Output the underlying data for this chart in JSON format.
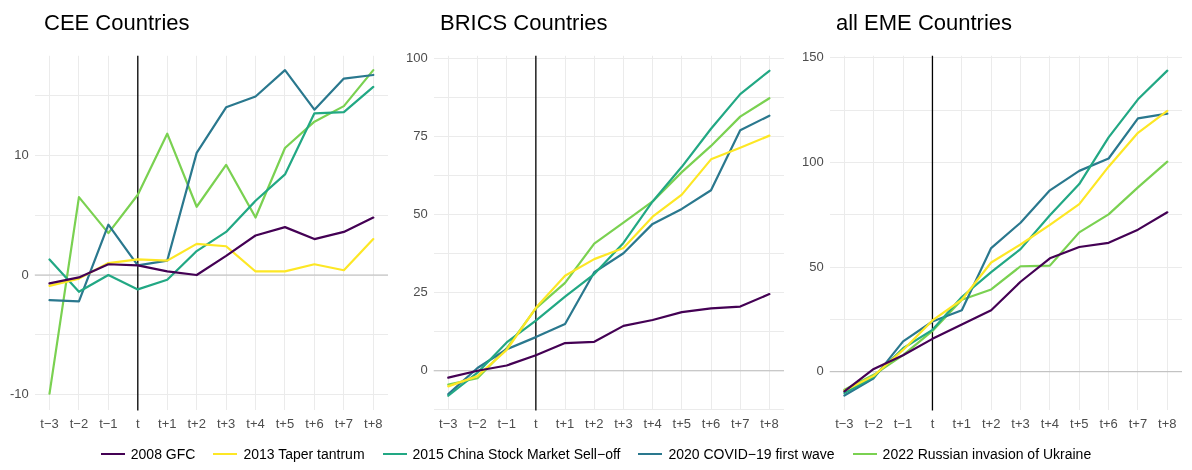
{
  "chart_data": [
    {
      "type": "line",
      "title": "CEE Countries",
      "categories": [
        "t−3",
        "t−2",
        "t−1",
        "t",
        "t+1",
        "t+2",
        "t+3",
        "t+4",
        "t+5",
        "t+6",
        "t+7",
        "t+8"
      ],
      "ylim": [
        -11.3,
        18.3
      ],
      "yticks": [
        -10,
        {
          "value": -5,
          "label": null
        },
        0,
        {
          "value": 5,
          "label": null
        },
        10,
        {
          "value": 15,
          "label": null
        }
      ],
      "grid": true,
      "legend": "bottom",
      "ref_lines": [
        {
          "axis": "y",
          "value": 0,
          "color": "#bbbbbb"
        },
        {
          "axis": "x",
          "value": "t",
          "color": "#000000"
        }
      ],
      "series": [
        {
          "name": "2008 GFC",
          "color": "#440154",
          "values": [
            -0.7,
            -0.2,
            0.9,
            0.8,
            0.3,
            0,
            1.6,
            3.3,
            4.0,
            3.0,
            3.6,
            4.8
          ]
        },
        {
          "name": "2013 Taper tantrum",
          "color": "#fde725",
          "values": [
            -0.9,
            -0.3,
            1.0,
            1.3,
            1.2,
            2.6,
            2.4,
            0.3,
            0.3,
            0.9,
            0.4,
            3.0
          ]
        },
        {
          "name": "2015 China Stock Market Sell−off",
          "color": "#22a884",
          "values": [
            1.3,
            -1.4,
            0,
            -1.2,
            -0.4,
            2.0,
            3.6,
            6.2,
            8.4,
            13.5,
            13.6,
            15.7
          ]
        },
        {
          "name": "2020 COVID−19 first wave",
          "color": "#2a788e",
          "values": [
            -2.1,
            -2.2,
            4.2,
            0.8,
            1.2,
            10.2,
            14.0,
            14.9,
            17.1,
            13.8,
            16.4,
            16.7
          ]
        },
        {
          "name": "2022 Russian invasion of Ukraine",
          "color": "#7ad151",
          "values": [
            -9.9,
            6.5,
            3.5,
            6.7,
            11.8,
            5.7,
            9.2,
            4.8,
            10.6,
            12.8,
            14.1,
            17.1
          ]
        }
      ]
    },
    {
      "type": "line",
      "title": "BRICS Countries",
      "categories": [
        "t−3",
        "t−2",
        "t−1",
        "t",
        "t+1",
        "t+2",
        "t+3",
        "t+4",
        "t+5",
        "t+6",
        "t+7",
        "t+8"
      ],
      "ylim": [
        -12.7,
        101
      ],
      "yticks": [
        {
          "value": -12.5,
          "label": null
        },
        0,
        {
          "value": 12.5,
          "label": null
        },
        25,
        {
          "value": 37.5,
          "label": null
        },
        50,
        {
          "value": 62.5,
          "label": null
        },
        75,
        {
          "value": 87.5,
          "label": null
        },
        100
      ],
      "grid": true,
      "ref_lines": [
        {
          "axis": "y",
          "value": 0,
          "color": "#bbbbbb"
        },
        {
          "axis": "x",
          "value": "t",
          "color": "#000000"
        }
      ],
      "series": [
        {
          "color": "#440154",
          "values": [
            -2.2,
            0,
            1.7,
            5.0,
            8.9,
            9.3,
            14.4,
            16.3,
            18.8,
            20.0,
            20.6,
            24.6
          ]
        },
        {
          "color": "#fde725",
          "values": [
            -5,
            -1.7,
            6.7,
            20.2,
            30.5,
            35.8,
            39.4,
            49.4,
            56.5,
            67.8,
            71.5,
            75.4
          ]
        },
        {
          "color": "#22a884",
          "values": [
            -8,
            -0.6,
            9.1,
            16.1,
            23.8,
            31,
            41,
            54.3,
            65.4,
            77.6,
            88.7,
            96.2
          ]
        },
        {
          "color": "#2a788e",
          "values": [
            -7.5,
            0.9,
            6.9,
            10.8,
            15.0,
            31.6,
            37.7,
            47.1,
            51.9,
            57.9,
            77.1,
            81.8
          ]
        },
        {
          "color": "#7ad151",
          "values": [
            -4.4,
            -2.4,
            7.2,
            20.0,
            28.2,
            40.8,
            47.5,
            54.3,
            63.7,
            72.1,
            81.5,
            87.4
          ]
        }
      ]
    },
    {
      "type": "line",
      "title": "all EME Countries",
      "categories": [
        "t−3",
        "t−2",
        "t−1",
        "t",
        "t+1",
        "t+2",
        "t+3",
        "t+4",
        "t+5",
        "t+6",
        "t+7",
        "t+8"
      ],
      "ylim": [
        -18.5,
        151
      ],
      "yticks": [
        0,
        {
          "value": 25,
          "label": null
        },
        50,
        {
          "value": 75,
          "label": null
        },
        100,
        {
          "value": 125,
          "label": null
        },
        150
      ],
      "grid": true,
      "ref_lines": [
        {
          "axis": "y",
          "value": 0,
          "color": "#bbbbbb"
        },
        {
          "axis": "x",
          "value": "t",
          "color": "#000000"
        }
      ],
      "series": [
        {
          "color": "#440154",
          "values": [
            -9.4,
            1.3,
            7.9,
            15.7,
            22.6,
            29.4,
            43,
            54.2,
            59.6,
            61.6,
            67.9,
            76.2
          ]
        },
        {
          "color": "#fde725",
          "values": [
            -9.1,
            -2,
            10.4,
            24.5,
            34.4,
            52.2,
            60.8,
            70.2,
            80.1,
            98,
            114.2,
            124.7
          ]
        },
        {
          "color": "#22a884",
          "values": [
            -10.2,
            -2.5,
            11.2,
            20,
            35.7,
            47.6,
            58.6,
            74.8,
            89.7,
            112,
            130.2,
            143.9
          ]
        },
        {
          "color": "#2a788e",
          "values": [
            -11.4,
            -3.1,
            14.5,
            24,
            29.4,
            59.1,
            71.2,
            86.7,
            96,
            101.9,
            121.1,
            123.4
          ]
        },
        {
          "color": "#7ad151",
          "values": [
            -8.6,
            -1.5,
            7.9,
            19.5,
            34.4,
            39.3,
            50.4,
            50.7,
            66.6,
            75.2,
            88.1,
            100.4
          ]
        }
      ]
    }
  ]
}
